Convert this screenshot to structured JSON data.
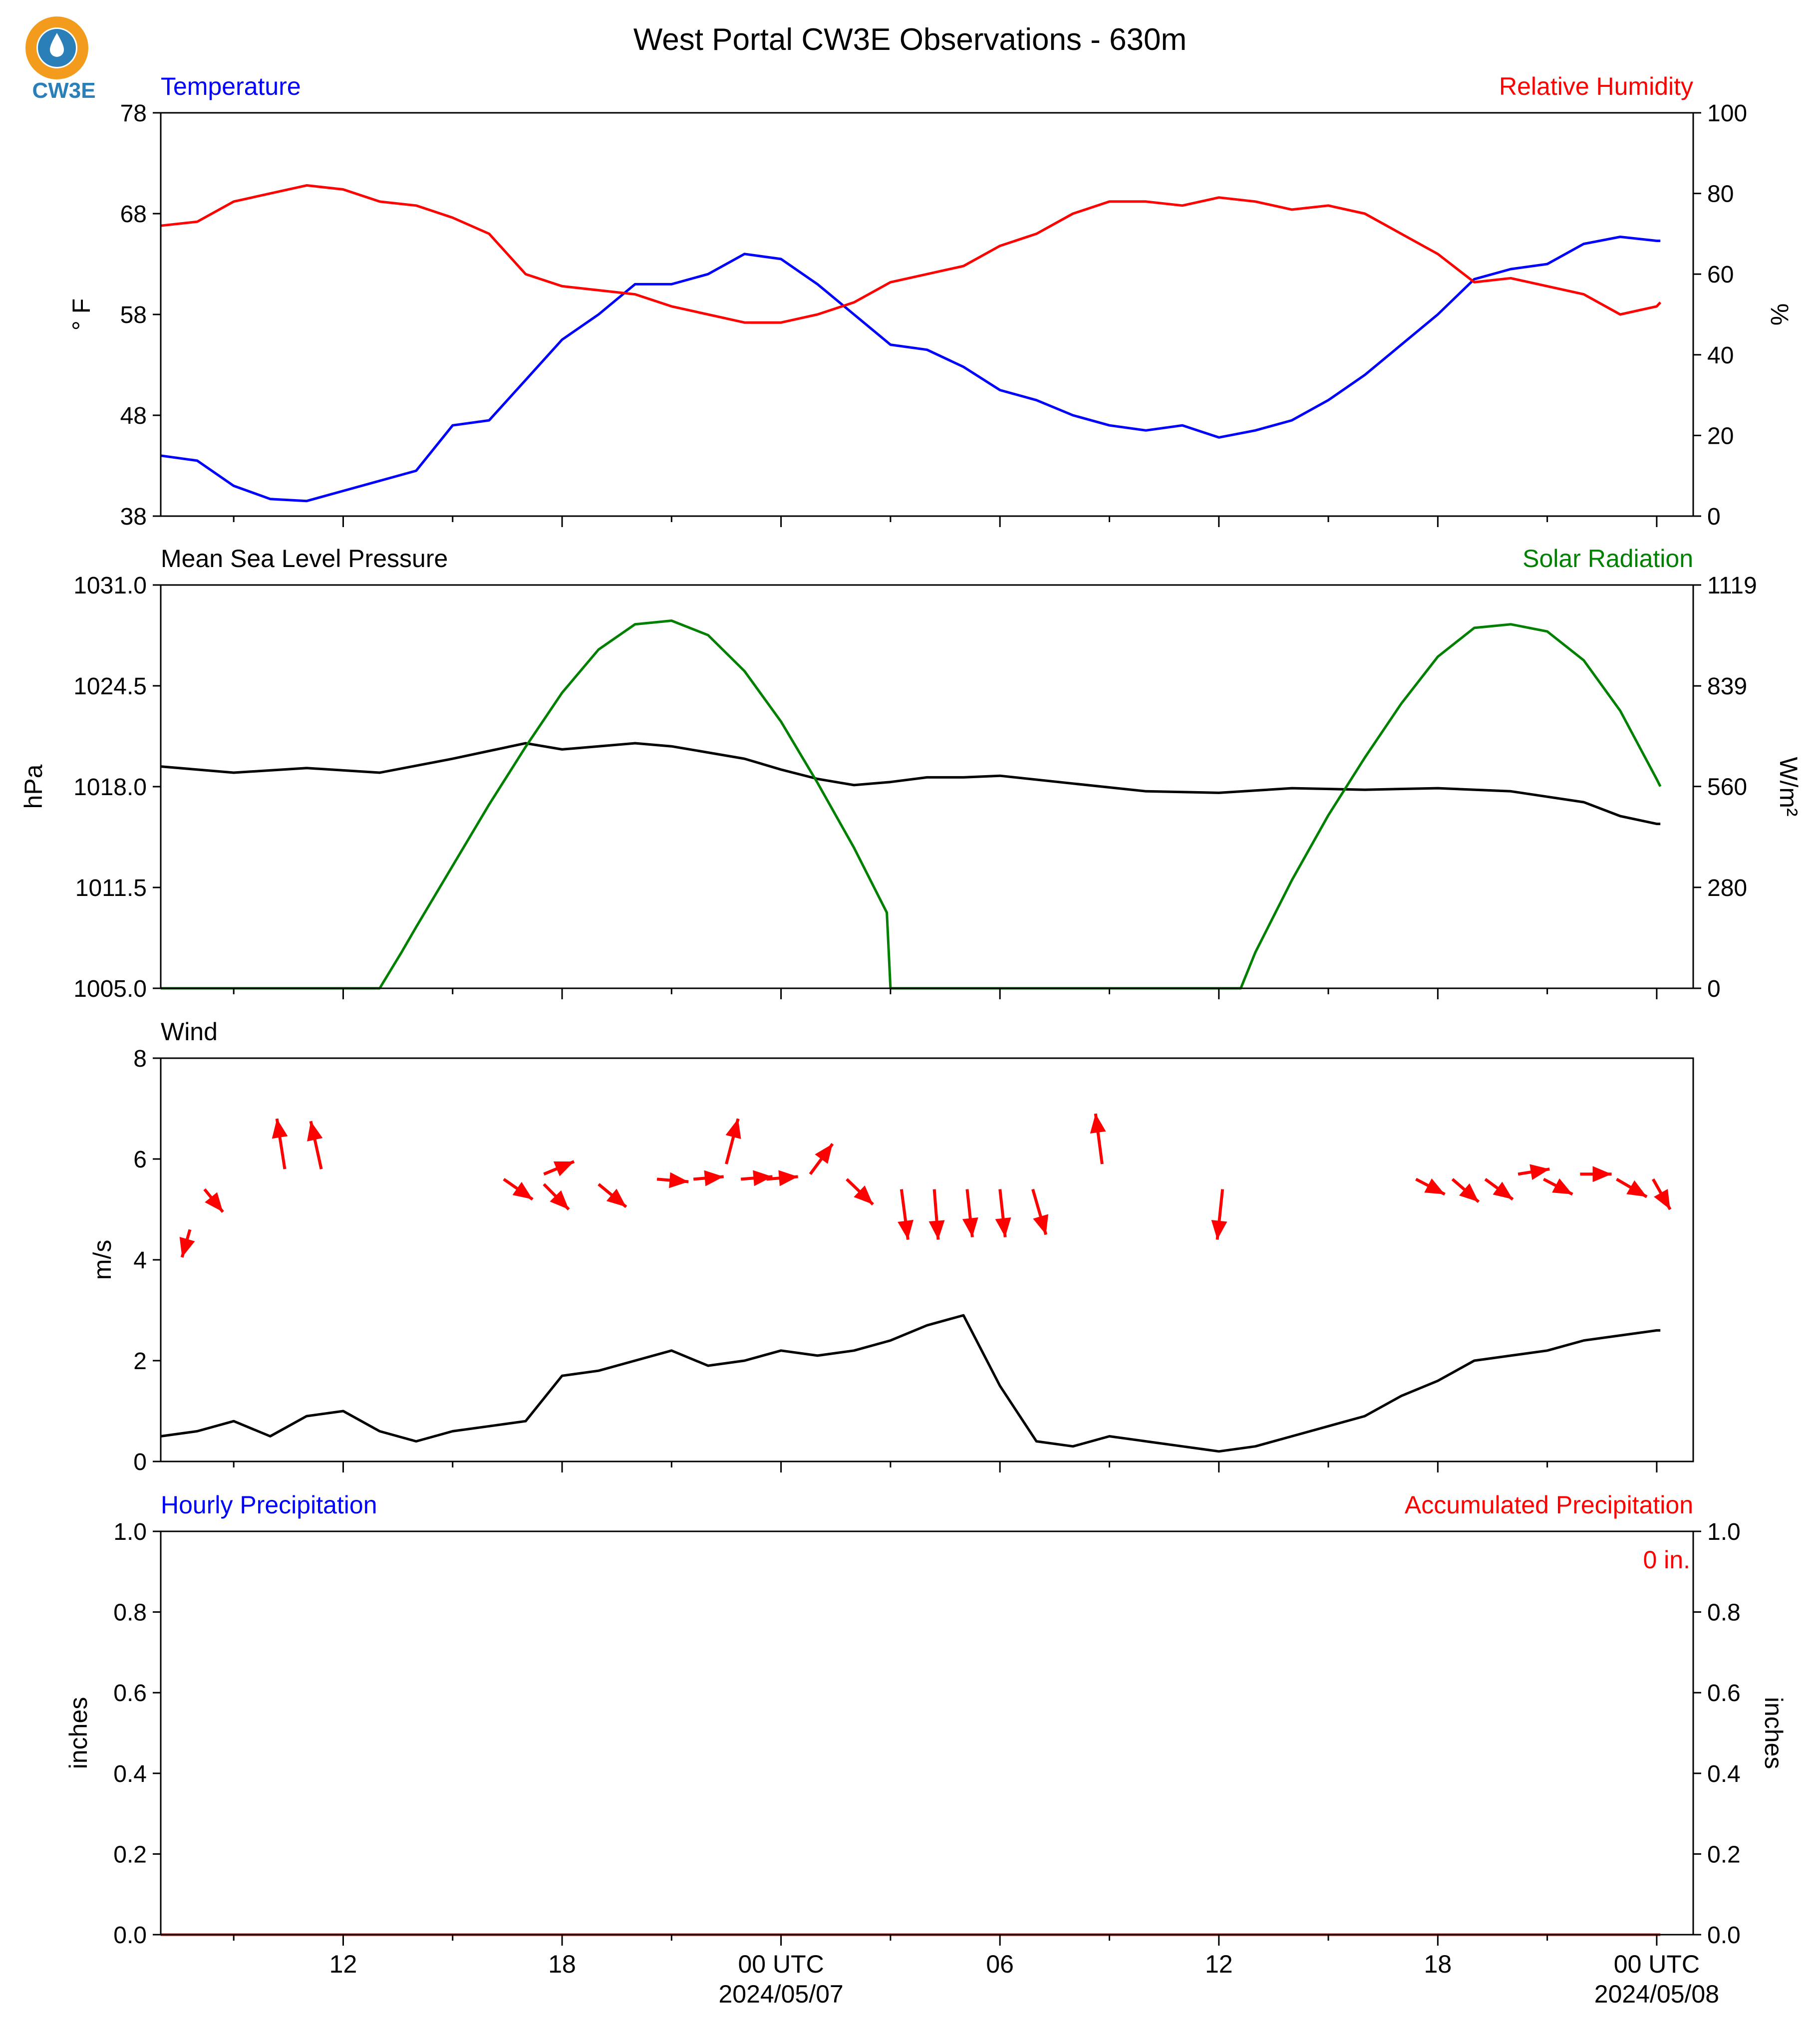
{
  "title": "West Portal CW3E Observations - 630m",
  "logo_text": "CW3E",
  "colors": {
    "temperature": "#0000ff",
    "humidity": "#ff0000",
    "pressure": "#000000",
    "solar": "#008000",
    "wind_speed": "#000000",
    "wind_arrows": "#ff0000",
    "hourly_precip": "#0000ff",
    "accum_precip": "#ff0000",
    "logo_orange": "#f29b1d",
    "logo_blue": "#2a7fb8"
  },
  "x_axis": {
    "start_hour": 7,
    "end_hour": 49,
    "major_ticks": [
      {
        "hour": 12,
        "label": "12",
        "sublabel": ""
      },
      {
        "hour": 18,
        "label": "18",
        "sublabel": ""
      },
      {
        "hour": 24,
        "label": "00 UTC",
        "sublabel": "2024/05/07"
      },
      {
        "hour": 30,
        "label": "06",
        "sublabel": ""
      },
      {
        "hour": 36,
        "label": "12",
        "sublabel": ""
      },
      {
        "hour": 42,
        "label": "18",
        "sublabel": ""
      },
      {
        "hour": 48,
        "label": "00 UTC",
        "sublabel": "2024/05/08"
      }
    ]
  },
  "chart_data": [
    {
      "type": "line",
      "left_title": "Temperature",
      "right_title": "Relative Humidity",
      "ylabel_left": "° F",
      "ylabel_right": "%",
      "ylim_left": [
        38,
        78
      ],
      "yticks_left": [
        "38",
        "48",
        "58",
        "68",
        "78"
      ],
      "ylim_right": [
        0,
        100
      ],
      "yticks_right": [
        "0",
        "20",
        "40",
        "60",
        "80",
        "100"
      ],
      "series": [
        {
          "name": "Temperature",
          "axis": "left",
          "x": [
            7,
            8,
            9,
            10,
            11,
            12,
            13,
            14,
            15,
            16,
            17,
            18,
            19,
            20,
            21,
            22,
            23,
            24,
            25,
            26,
            27,
            28,
            29,
            30,
            31,
            32,
            33,
            34,
            35,
            36,
            37,
            38,
            39,
            40,
            41,
            42,
            43,
            44,
            45,
            46,
            47,
            48,
            48.1
          ],
          "y": [
            44,
            43.5,
            41,
            39.7,
            39.5,
            40.5,
            41.5,
            42.5,
            47,
            47.5,
            51.5,
            55.5,
            58,
            61,
            61,
            62,
            64,
            63.5,
            61,
            58,
            55,
            54.5,
            52.8,
            50.5,
            49.5,
            48,
            47,
            46.5,
            47,
            45.8,
            46.5,
            47.5,
            49.5,
            52,
            55,
            58,
            61.5,
            62.5,
            63,
            65,
            65.7,
            65.3,
            65.3
          ]
        },
        {
          "name": "Relative Humidity",
          "axis": "right",
          "x": [
            7,
            8,
            9,
            10,
            11,
            12,
            13,
            14,
            15,
            16,
            17,
            18,
            19,
            20,
            21,
            22,
            23,
            24,
            25,
            26,
            27,
            28,
            29,
            30,
            31,
            32,
            33,
            34,
            35,
            36,
            37,
            38,
            39,
            40,
            41,
            42,
            43,
            44,
            45,
            46,
            47,
            48,
            48.1
          ],
          "y": [
            72,
            73,
            78,
            80,
            82,
            81,
            78,
            77,
            74,
            70,
            60,
            57,
            56,
            55,
            52,
            50,
            48,
            48,
            50,
            53,
            58,
            60,
            62,
            67,
            70,
            75,
            78,
            78,
            77,
            79,
            78,
            76,
            77,
            75,
            70,
            65,
            58,
            59,
            57,
            55,
            50,
            52,
            53
          ]
        }
      ]
    },
    {
      "type": "line",
      "left_title": "Mean Sea Level Pressure",
      "right_title": "Solar Radiation",
      "ylabel_left": "hPa",
      "ylabel_right": "W/m²",
      "ylim_left": [
        1005,
        1031
      ],
      "yticks_left": [
        "1005.0",
        "1011.5",
        "1018.0",
        "1024.5",
        "1031.0"
      ],
      "ylim_right": [
        0,
        1119
      ],
      "yticks_right": [
        "0",
        "280",
        "560",
        "839",
        "1119"
      ],
      "series": [
        {
          "name": "Mean Sea Level Pressure",
          "axis": "left",
          "x": [
            7,
            9,
            11,
            13,
            15,
            16,
            17,
            18,
            19,
            20,
            21,
            22,
            23,
            24,
            25,
            26,
            27,
            28,
            29,
            30,
            32,
            34,
            36,
            38,
            40,
            42,
            44,
            46,
            47,
            48,
            48.1
          ],
          "y": [
            1019.3,
            1018.9,
            1019.2,
            1018.9,
            1019.8,
            1020.3,
            1020.8,
            1020.4,
            1020.6,
            1020.8,
            1020.6,
            1020.2,
            1019.8,
            1019.1,
            1018.5,
            1018.1,
            1018.3,
            1018.6,
            1018.6,
            1018.7,
            1018.2,
            1017.7,
            1017.6,
            1017.9,
            1017.8,
            1017.9,
            1017.7,
            1017.0,
            1016.1,
            1015.6,
            1015.6
          ]
        },
        {
          "name": "Solar Radiation",
          "axis": "right",
          "x": [
            7,
            13,
            13.6,
            14,
            15,
            16,
            17,
            18,
            19,
            20,
            21,
            22,
            23,
            24,
            25,
            26,
            26.9,
            27,
            30,
            35,
            36,
            36.6,
            37,
            38,
            39,
            40,
            41,
            42,
            43,
            44,
            45,
            46,
            47,
            48,
            48.1
          ],
          "y": [
            0,
            0,
            100,
            170,
            340,
            510,
            670,
            820,
            940,
            1010,
            1020,
            980,
            880,
            740,
            570,
            390,
            210,
            0,
            0,
            0,
            0,
            0,
            100,
            300,
            480,
            640,
            790,
            920,
            1000,
            1010,
            990,
            910,
            770,
            580,
            560
          ]
        }
      ]
    },
    {
      "type": "line",
      "left_title": "Wind",
      "ylabel_left": "m/s",
      "ylim_left": [
        0,
        8
      ],
      "yticks_left": [
        "0",
        "2",
        "4",
        "6",
        "8"
      ],
      "series": [
        {
          "name": "Wind",
          "axis": "left",
          "x": [
            7,
            8,
            9,
            10,
            11,
            12,
            13,
            14,
            15,
            16,
            17,
            18,
            19,
            20,
            21,
            22,
            23,
            24,
            25,
            26,
            27,
            28,
            29,
            30,
            31,
            32,
            33,
            34,
            35,
            36,
            37,
            38,
            39,
            40,
            41,
            42,
            43,
            44,
            45,
            46,
            47,
            48,
            48.1
          ],
          "y": [
            0.5,
            0.6,
            0.8,
            0.5,
            0.9,
            1.0,
            0.6,
            0.4,
            0.6,
            0.7,
            0.8,
            1.7,
            1.8,
            2.0,
            2.2,
            1.9,
            2.0,
            2.2,
            2.1,
            2.2,
            2.4,
            2.7,
            2.9,
            1.5,
            0.4,
            0.3,
            0.5,
            0.4,
            0.3,
            0.2,
            0.3,
            0.5,
            0.7,
            0.9,
            1.3,
            1.6,
            2.0,
            2.1,
            2.2,
            2.4,
            2.5,
            2.6,
            2.6
          ]
        }
      ],
      "arrows": [
        {
          "x": 7.8,
          "y": 4.6,
          "dx": -0.6,
          "dy": -1.1
        },
        {
          "x": 8.2,
          "y": 5.4,
          "dx": 1.4,
          "dy": -0.9
        },
        {
          "x": 10.4,
          "y": 5.8,
          "dx": -0.6,
          "dy": 2.0
        },
        {
          "x": 11.4,
          "y": 5.8,
          "dx": -0.8,
          "dy": 1.9
        },
        {
          "x": 16.4,
          "y": 5.6,
          "dx": 2.2,
          "dy": -0.8
        },
        {
          "x": 17.5,
          "y": 5.7,
          "dx": 2.3,
          "dy": 0.5
        },
        {
          "x": 17.5,
          "y": 5.5,
          "dx": 1.9,
          "dy": -1.0
        },
        {
          "x": 19.0,
          "y": 5.5,
          "dx": 2.1,
          "dy": -0.9
        },
        {
          "x": 20.6,
          "y": 5.6,
          "dx": 2.4,
          "dy": -0.1
        },
        {
          "x": 21.6,
          "y": 5.6,
          "dx": 2.3,
          "dy": 0.1
        },
        {
          "x": 22.5,
          "y": 5.9,
          "dx": 0.9,
          "dy": 1.8
        },
        {
          "x": 22.9,
          "y": 5.6,
          "dx": 2.4,
          "dy": 0.1
        },
        {
          "x": 23.6,
          "y": 5.6,
          "dx": 2.4,
          "dy": 0.1
        },
        {
          "x": 24.8,
          "y": 5.7,
          "dx": 1.7,
          "dy": 1.2
        },
        {
          "x": 25.8,
          "y": 5.6,
          "dx": 2.0,
          "dy": -1.0
        },
        {
          "x": 27.3,
          "y": 5.4,
          "dx": 0.5,
          "dy": -2.0
        },
        {
          "x": 28.2,
          "y": 5.4,
          "dx": 0.3,
          "dy": -2.0
        },
        {
          "x": 29.1,
          "y": 5.4,
          "dx": 0.4,
          "dy": -1.9
        },
        {
          "x": 30.0,
          "y": 5.4,
          "dx": 0.4,
          "dy": -1.9
        },
        {
          "x": 30.9,
          "y": 5.4,
          "dx": 1.0,
          "dy": -1.8
        },
        {
          "x": 32.8,
          "y": 5.9,
          "dx": -0.5,
          "dy": 2.0
        },
        {
          "x": 36.1,
          "y": 5.4,
          "dx": -0.4,
          "dy": -2.0
        },
        {
          "x": 41.4,
          "y": 5.6,
          "dx": 2.2,
          "dy": -0.6
        },
        {
          "x": 42.4,
          "y": 5.6,
          "dx": 2.0,
          "dy": -0.9
        },
        {
          "x": 43.3,
          "y": 5.6,
          "dx": 2.1,
          "dy": -0.8
        },
        {
          "x": 44.2,
          "y": 5.7,
          "dx": 2.4,
          "dy": 0.2
        },
        {
          "x": 44.9,
          "y": 5.6,
          "dx": 2.2,
          "dy": -0.6
        },
        {
          "x": 45.9,
          "y": 5.7,
          "dx": 2.4,
          "dy": 0.0
        },
        {
          "x": 46.9,
          "y": 5.6,
          "dx": 2.3,
          "dy": -0.7
        },
        {
          "x": 47.9,
          "y": 5.6,
          "dx": 1.3,
          "dy": -1.2
        }
      ]
    },
    {
      "type": "line",
      "left_title": "Hourly Precipitation",
      "right_title": "Accumulated Precipitation",
      "ylabel_left": "inches",
      "ylabel_right": "inches",
      "ylim_left": [
        0,
        1
      ],
      "yticks_left": [
        "0.0",
        "0.2",
        "0.4",
        "0.6",
        "0.8",
        "1.0"
      ],
      "ylim_right": [
        0,
        1
      ],
      "yticks_right": [
        "0.0",
        "0.2",
        "0.4",
        "0.6",
        "0.8",
        "1.0"
      ],
      "annotation": "0 in.",
      "series": [
        {
          "name": "Accumulated Precipitation",
          "axis": "right",
          "x": [
            7,
            48.1
          ],
          "y": [
            0,
            0
          ]
        }
      ]
    }
  ]
}
